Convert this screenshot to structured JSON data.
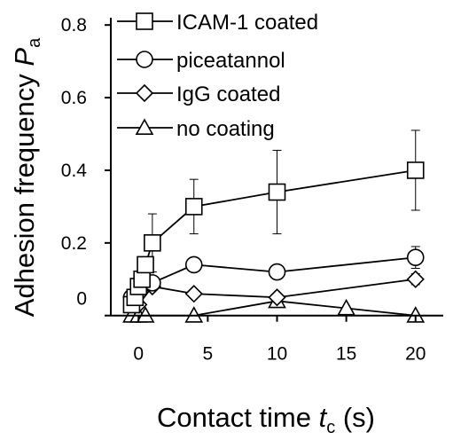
{
  "chart_data": {
    "type": "line",
    "xlabel": "Contact time",
    "xlabel_var": "t",
    "xlabel_sub": "c",
    "xlabel_unit": "(s)",
    "ylabel": "Adhesion frequency",
    "ylabel_var": "P",
    "ylabel_sub": "a",
    "xlim": [
      -2,
      22
    ],
    "ylim": [
      -0.03,
      0.82
    ],
    "xticks": [
      0,
      5,
      10,
      15,
      20
    ],
    "xtick_labels": [
      "0",
      "5",
      "10",
      "15",
      "20"
    ],
    "yticks": [
      0,
      0.2,
      0.4,
      0.6,
      0.8
    ],
    "ytick_labels": [
      "0",
      "0.2",
      "0.4",
      "0.6",
      "0.8"
    ],
    "grid": false,
    "legend_position": "top-left",
    "series": [
      {
        "name": "ICAM-1 coated",
        "marker": "square",
        "x": [
          -0.5,
          -0.25,
          0,
          0.25,
          0.5,
          1,
          4,
          10,
          20
        ],
        "y": [
          0.03,
          0.05,
          0.08,
          0.1,
          0.14,
          0.2,
          0.3,
          0.34,
          0.4
        ],
        "err": [
          0,
          0,
          0,
          0,
          0,
          0.08,
          0.075,
          0.115,
          0.11
        ]
      },
      {
        "name": "piceatannol",
        "marker": "circle",
        "x": [
          -0.5,
          0,
          0.5,
          1,
          4,
          10,
          20
        ],
        "y": [
          0.05,
          0.08,
          0.09,
          0.09,
          0.14,
          0.12,
          0.16
        ],
        "err": [
          0,
          0,
          0,
          0,
          0.01,
          0.015,
          0.03
        ]
      },
      {
        "name": "IgG coated",
        "marker": "diamond",
        "x": [
          -0.5,
          0,
          1,
          4,
          10,
          20
        ],
        "y": [
          0.05,
          0.03,
          0.08,
          0.06,
          0.05,
          0.1
        ],
        "err": [
          0,
          0,
          0,
          0,
          0,
          0.015
        ]
      },
      {
        "name": "no coating",
        "marker": "triangle",
        "x": [
          -0.5,
          0,
          0.5,
          4,
          10,
          15,
          20
        ],
        "y": [
          0,
          0,
          0,
          0,
          0.04,
          0.02,
          0
        ],
        "err": [
          0,
          0,
          0,
          0,
          0,
          0,
          0
        ]
      }
    ]
  }
}
